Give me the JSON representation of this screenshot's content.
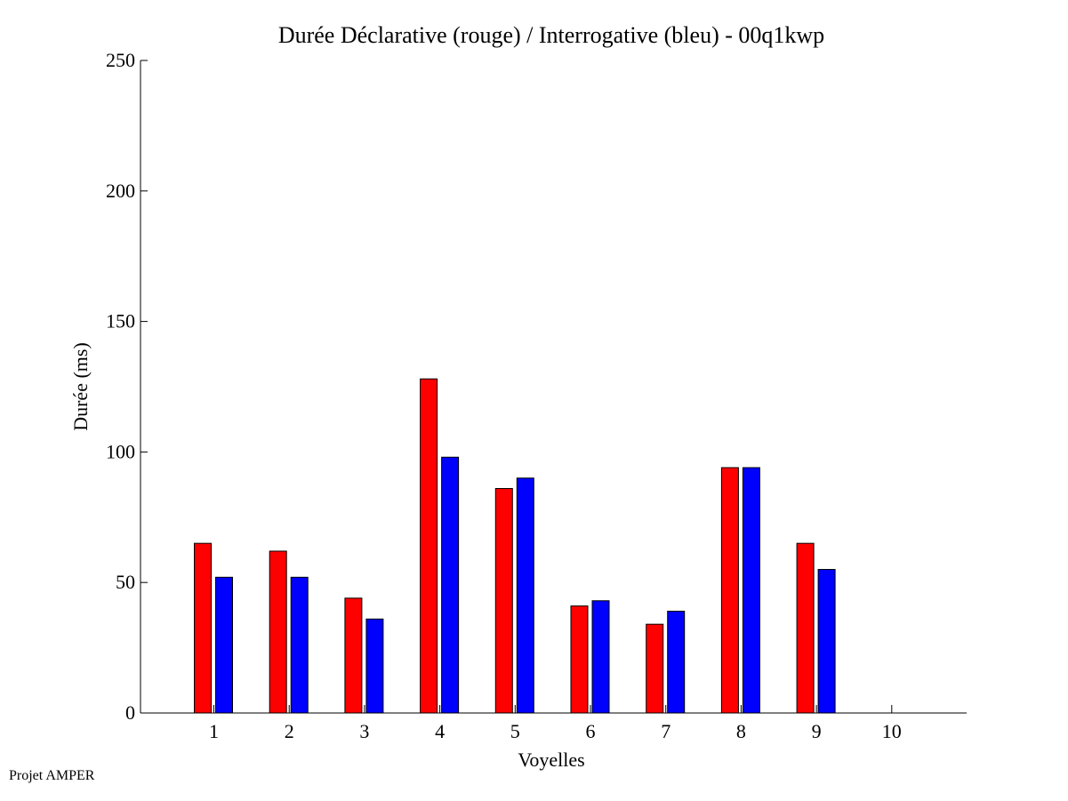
{
  "chart_data": {
    "type": "bar",
    "title": "Durée Déclarative (rouge) / Interrogative (bleu) - 00q1kwp",
    "xlabel": "Voyelles",
    "ylabel": "Durée (ms)",
    "ylim": [
      0,
      250
    ],
    "yticks": [
      0,
      50,
      100,
      150,
      200,
      250
    ],
    "categories": [
      "1",
      "2",
      "3",
      "4",
      "5",
      "6",
      "7",
      "8",
      "9",
      "10"
    ],
    "series": [
      {
        "color": "#ff0000",
        "values": [
          65,
          62,
          44,
          128,
          86,
          41,
          34,
          94,
          65,
          null
        ]
      },
      {
        "color": "#0000ff",
        "values": [
          52,
          52,
          36,
          98,
          90,
          43,
          39,
          94,
          55,
          null
        ]
      }
    ],
    "grid": false,
    "legend": "none"
  },
  "footer": {
    "note": "Projet AMPER"
  }
}
